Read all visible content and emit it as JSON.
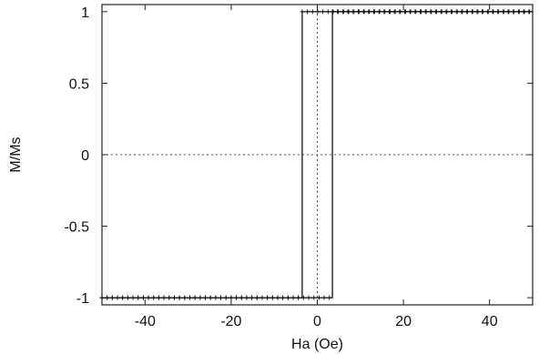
{
  "chart_data": {
    "type": "line",
    "title": "",
    "xlabel": "Ha (Oe)",
    "ylabel": "M/Ms",
    "xlim": [
      -50,
      50
    ],
    "ylim": [
      -1.05,
      1.05
    ],
    "x_ticks": [
      -40,
      -20,
      0,
      20,
      40
    ],
    "x_tick_labels": [
      "-40",
      "-20",
      "0",
      "20",
      "40"
    ],
    "y_ticks": [
      1,
      0.5,
      0,
      -0.5,
      -1
    ],
    "y_tick_labels": [
      "1",
      "0.5",
      "0",
      "-0.5",
      "-1"
    ],
    "grid": false,
    "reference_lines": {
      "horizontal_dotted_at_y": 0,
      "vertical_dotted_at_x": 0
    },
    "series": [
      {
        "marker": "plus",
        "x": [
          -50,
          -3.5,
          -3.5,
          50
        ],
        "y": [
          -1,
          -1,
          1,
          1
        ]
      },
      {
        "marker": "plus",
        "x": [
          50,
          3.5,
          3.5,
          -50
        ],
        "y": [
          1,
          1,
          -1,
          -1
        ]
      }
    ],
    "colors": {
      "line": "#111111",
      "axis": "#222222",
      "dotted": "#555555"
    }
  }
}
